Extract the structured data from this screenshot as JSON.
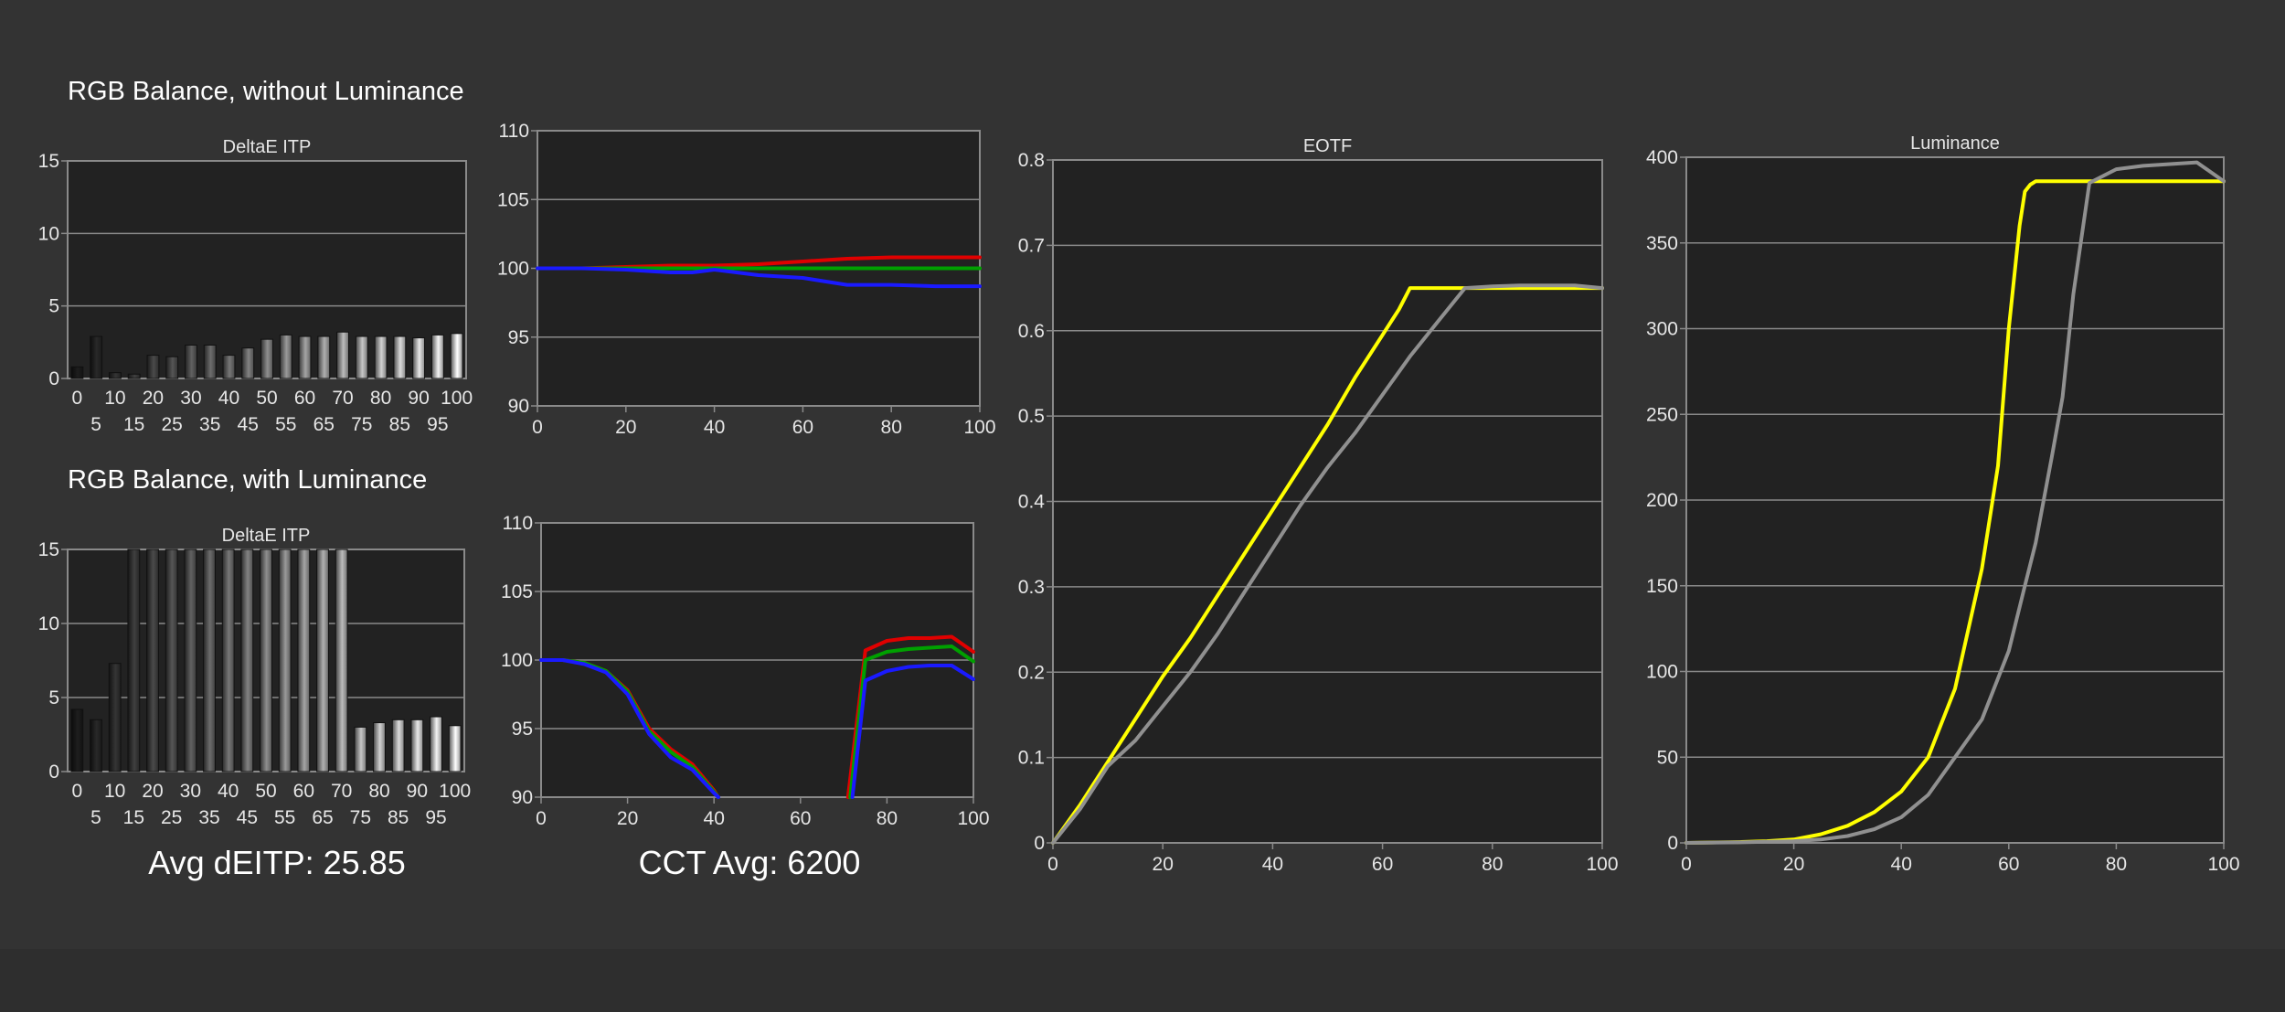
{
  "titles": {
    "without_lum": "RGB Balance, without Luminance",
    "with_lum": "RGB Balance, with Luminance"
  },
  "stats": {
    "avg_deitp": "Avg dEITP: 25.85",
    "cct_avg": "CCT Avg: 6200"
  },
  "colors": {
    "background": "#333333",
    "plot_bg": "#222222",
    "grid": "#8a8a8a",
    "red": "#e00000",
    "green": "#00a000",
    "blue": "#1a1aff",
    "yellow": "#ffff00",
    "gray": "#909090"
  },
  "chart_data": [
    {
      "id": "deitp1",
      "type": "bar",
      "title": "DeltaE ITP",
      "categories": [
        "0",
        "5",
        "10",
        "15",
        "20",
        "25",
        "30",
        "35",
        "40",
        "45",
        "50",
        "55",
        "60",
        "65",
        "70",
        "75",
        "80",
        "85",
        "90",
        "95",
        "100"
      ],
      "x_labels_top": [
        "0",
        "10",
        "20",
        "30",
        "40",
        "50",
        "60",
        "70",
        "80",
        "90",
        "100"
      ],
      "x_labels_bottom": [
        "5",
        "15",
        "25",
        "35",
        "45",
        "55",
        "65",
        "75",
        "85",
        "95"
      ],
      "values": [
        0.8,
        2.9,
        0.4,
        0.3,
        1.6,
        1.5,
        2.3,
        2.3,
        1.6,
        2.1,
        2.7,
        3.0,
        2.9,
        2.9,
        3.2,
        2.9,
        2.9,
        2.9,
        2.8,
        3.0,
        3.1
      ],
      "ylim": [
        0,
        15
      ],
      "yticks": [
        "0",
        "5",
        "10",
        "15"
      ]
    },
    {
      "id": "rgb1",
      "type": "line",
      "title": "",
      "xlim": [
        0,
        100
      ],
      "ylim": [
        90,
        110
      ],
      "xticks": [
        "0",
        "20",
        "40",
        "60",
        "80",
        "100"
      ],
      "yticks": [
        "90",
        "95",
        "100",
        "105",
        "110"
      ],
      "series": [
        {
          "color": "red",
          "x": [
            0,
            10,
            20,
            30,
            40,
            50,
            60,
            70,
            80,
            90,
            100
          ],
          "y": [
            100,
            100,
            100.1,
            100.2,
            100.2,
            100.3,
            100.5,
            100.7,
            100.8,
            100.8,
            100.8
          ]
        },
        {
          "color": "green",
          "x": [
            0,
            10,
            20,
            30,
            40,
            50,
            60,
            70,
            80,
            90,
            100
          ],
          "y": [
            100,
            100,
            100,
            100,
            100,
            100,
            100,
            100,
            100,
            100,
            100
          ]
        },
        {
          "color": "blue",
          "x": [
            0,
            10,
            20,
            30,
            35,
            40,
            50,
            60,
            70,
            80,
            90,
            100
          ],
          "y": [
            100,
            100,
            99.9,
            99.7,
            99.7,
            99.9,
            99.5,
            99.3,
            98.8,
            98.8,
            98.7,
            98.7
          ]
        }
      ]
    },
    {
      "id": "deitp2",
      "type": "bar",
      "title": "DeltaE ITP",
      "categories": [
        "0",
        "5",
        "10",
        "15",
        "20",
        "25",
        "30",
        "35",
        "40",
        "45",
        "50",
        "55",
        "60",
        "65",
        "70",
        "75",
        "80",
        "85",
        "90",
        "95",
        "100"
      ],
      "x_labels_top": [
        "0",
        "10",
        "20",
        "30",
        "40",
        "50",
        "60",
        "70",
        "80",
        "90",
        "100"
      ],
      "x_labels_bottom": [
        "5",
        "15",
        "25",
        "35",
        "45",
        "55",
        "65",
        "75",
        "85",
        "95"
      ],
      "values": [
        4.2,
        3.5,
        7.3,
        15,
        15,
        15,
        15,
        15,
        15,
        15,
        15,
        15,
        15,
        15,
        15,
        3.0,
        3.3,
        3.5,
        3.5,
        3.7,
        3.1
      ],
      "ylim": [
        0,
        15
      ],
      "yticks": [
        "0",
        "5",
        "10",
        "15"
      ]
    },
    {
      "id": "rgb2",
      "type": "line",
      "title": "",
      "xlim": [
        0,
        100
      ],
      "ylim": [
        90,
        110
      ],
      "xticks": [
        "0",
        "20",
        "40",
        "60",
        "80",
        "100"
      ],
      "yticks": [
        "90",
        "95",
        "100",
        "105",
        "110"
      ],
      "series": [
        {
          "color": "red",
          "x": [
            0,
            5,
            10,
            15,
            20,
            25,
            30,
            35,
            40,
            41
          ],
          "y": [
            100,
            100,
            99.8,
            99.2,
            97.8,
            95,
            93.5,
            92.4,
            90.5,
            90
          ]
        },
        {
          "color": "green",
          "x": [
            0,
            5,
            10,
            15,
            20,
            25,
            30,
            35,
            40,
            41
          ],
          "y": [
            100,
            100,
            99.8,
            99.2,
            97.7,
            94.8,
            93.3,
            92.2,
            90.4,
            90
          ]
        },
        {
          "color": "blue",
          "x": [
            0,
            5,
            10,
            15,
            20,
            25,
            30,
            35,
            40,
            41
          ],
          "y": [
            100,
            100,
            99.7,
            99.1,
            97.5,
            94.6,
            92.9,
            92,
            90.3,
            90
          ]
        },
        {
          "color": "red",
          "x": [
            71,
            75,
            80,
            85,
            90,
            95,
            100
          ],
          "y": [
            90,
            100.7,
            101.4,
            101.6,
            101.6,
            101.7,
            100.6
          ]
        },
        {
          "color": "green",
          "x": [
            71.5,
            75,
            80,
            85,
            90,
            95,
            100
          ],
          "y": [
            90,
            100,
            100.6,
            100.8,
            100.9,
            101,
            99.9
          ]
        },
        {
          "color": "blue",
          "x": [
            72,
            75,
            80,
            85,
            90,
            95,
            100
          ],
          "y": [
            90,
            98.5,
            99.2,
            99.5,
            99.6,
            99.6,
            98.6
          ]
        }
      ]
    },
    {
      "id": "eotf",
      "type": "line",
      "title": "EOTF",
      "xlim": [
        0,
        100
      ],
      "ylim": [
        0,
        0.8
      ],
      "xticks": [
        "0",
        "20",
        "40",
        "60",
        "80",
        "100"
      ],
      "yticks": [
        "0",
        "0.1",
        "0.2",
        "0.3",
        "0.4",
        "0.5",
        "0.6",
        "0.7",
        "0.8"
      ],
      "series": [
        {
          "color": "yellow",
          "x": [
            0,
            5,
            10,
            15,
            20,
            25,
            30,
            35,
            40,
            45,
            50,
            55,
            60,
            63,
            65,
            70,
            75,
            80,
            90,
            100
          ],
          "y": [
            0,
            0.045,
            0.095,
            0.145,
            0.195,
            0.24,
            0.29,
            0.34,
            0.39,
            0.44,
            0.49,
            0.545,
            0.595,
            0.625,
            0.65,
            0.65,
            0.65,
            0.65,
            0.65,
            0.65
          ]
        },
        {
          "color": "gray",
          "x": [
            0,
            5,
            10,
            15,
            20,
            25,
            30,
            35,
            40,
            45,
            50,
            55,
            60,
            65,
            70,
            75,
            80,
            85,
            90,
            95,
            100
          ],
          "y": [
            0,
            0.04,
            0.09,
            0.12,
            0.16,
            0.2,
            0.245,
            0.295,
            0.345,
            0.395,
            0.44,
            0.48,
            0.525,
            0.57,
            0.61,
            0.65,
            0.652,
            0.653,
            0.653,
            0.653,
            0.65
          ]
        }
      ]
    },
    {
      "id": "lum",
      "type": "line",
      "title": "Luminance",
      "xlim": [
        0,
        100
      ],
      "ylim": [
        0,
        400
      ],
      "xticks": [
        "0",
        "20",
        "40",
        "60",
        "80",
        "100"
      ],
      "yticks": [
        "0",
        "50",
        "100",
        "150",
        "200",
        "250",
        "300",
        "350",
        "400"
      ],
      "series": [
        {
          "color": "yellow",
          "x": [
            0,
            10,
            15,
            20,
            25,
            30,
            35,
            40,
            45,
            50,
            55,
            58,
            60,
            62,
            63,
            64,
            65,
            66,
            70,
            80,
            90,
            100
          ],
          "y": [
            0,
            0.5,
            1,
            2,
            5,
            10,
            18,
            30,
            50,
            90,
            160,
            220,
            300,
            360,
            380,
            384,
            386,
            386,
            386,
            386,
            386,
            386
          ]
        },
        {
          "color": "gray",
          "x": [
            0,
            10,
            20,
            25,
            30,
            35,
            40,
            45,
            50,
            55,
            60,
            63,
            65,
            68,
            70,
            72,
            75,
            80,
            85,
            90,
            95,
            100
          ],
          "y": [
            0,
            0.3,
            1,
            2,
            4,
            8,
            15,
            28,
            50,
            72,
            112,
            150,
            175,
            225,
            260,
            320,
            385,
            393,
            395,
            396,
            397,
            386
          ]
        }
      ]
    }
  ]
}
